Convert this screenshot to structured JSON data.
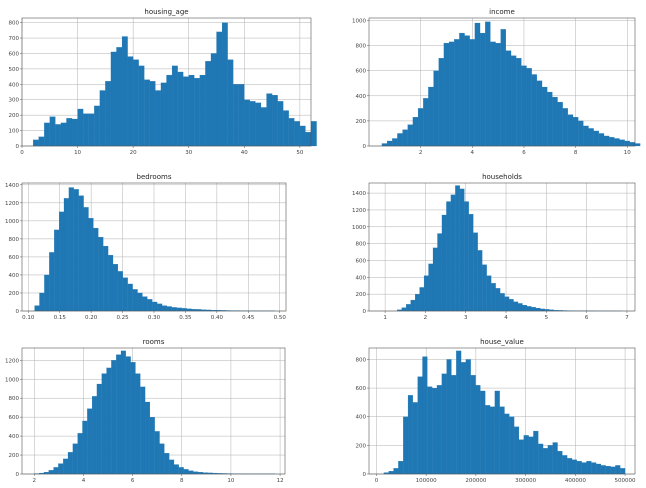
{
  "chart_data": [
    {
      "type": "bar",
      "title": "housing_age",
      "xlim": [
        0,
        52
      ],
      "ylim": [
        0,
        830
      ],
      "xticks": [
        0,
        10,
        20,
        30,
        40,
        50
      ],
      "yticks": [
        0,
        100,
        200,
        300,
        400,
        500,
        600,
        700,
        800
      ],
      "bin_start": 2,
      "bin_width": 1,
      "values": [
        40,
        60,
        150,
        190,
        140,
        150,
        180,
        175,
        240,
        210,
        210,
        260,
        360,
        420,
        610,
        640,
        710,
        580,
        560,
        520,
        430,
        420,
        360,
        410,
        460,
        520,
        480,
        450,
        460,
        440,
        460,
        550,
        600,
        740,
        800,
        560,
        400,
        400,
        300,
        290,
        280,
        250,
        340,
        330,
        290,
        230,
        180,
        160,
        130,
        90,
        160
      ],
      "grid": true,
      "color": "#1f77b4"
    },
    {
      "type": "bar",
      "title": "income",
      "xlim": [
        0,
        10.3
      ],
      "ylim": [
        0,
        1020
      ],
      "xticks": [
        2,
        4,
        6,
        8,
        10
      ],
      "yticks": [
        0,
        200,
        400,
        600,
        800,
        1000
      ],
      "bin_start": 0.5,
      "bin_width": 0.2,
      "values": [
        20,
        40,
        60,
        100,
        130,
        170,
        230,
        300,
        380,
        470,
        600,
        700,
        820,
        830,
        850,
        900,
        880,
        850,
        980,
        900,
        990,
        830,
        820,
        930,
        760,
        720,
        700,
        640,
        620,
        570,
        520,
        470,
        430,
        390,
        350,
        300,
        250,
        230,
        200,
        160,
        140,
        120,
        100,
        80,
        70,
        60,
        50,
        40,
        30,
        20
      ],
      "grid": true,
      "color": "#1f77b4"
    },
    {
      "type": "bar",
      "title": "bedrooms",
      "xlim": [
        0.09,
        0.51
      ],
      "ylim": [
        0,
        1420
      ],
      "xticks": [
        0.1,
        0.15,
        0.2,
        0.25,
        0.3,
        0.35,
        0.4,
        0.45,
        0.5
      ],
      "yticks": [
        0,
        200,
        400,
        600,
        800,
        1000,
        1200,
        1400
      ],
      "bin_start": 0.11,
      "bin_width": 0.0078,
      "values": [
        60,
        200,
        400,
        650,
        900,
        1100,
        1250,
        1370,
        1350,
        1280,
        1150,
        1030,
        920,
        820,
        720,
        620,
        520,
        440,
        370,
        300,
        240,
        200,
        160,
        130,
        100,
        80,
        60,
        50,
        40,
        35,
        30,
        25,
        20,
        18,
        15,
        12,
        10,
        10,
        8,
        6,
        5,
        5,
        4,
        3,
        3,
        2,
        2,
        2,
        2
      ],
      "grid": true,
      "color": "#1f77b4"
    },
    {
      "type": "bar",
      "title": "households",
      "xlim": [
        0.6,
        7.2
      ],
      "ylim": [
        0,
        1520
      ],
      "xticks": [
        1,
        2,
        3,
        4,
        5,
        6,
        7
      ],
      "yticks": [
        0,
        200,
        400,
        600,
        800,
        1000,
        1200,
        1400
      ],
      "bin_start": 1.3,
      "bin_width": 0.111,
      "values": [
        15,
        40,
        80,
        130,
        200,
        280,
        420,
        560,
        750,
        920,
        1140,
        1300,
        1380,
        1490,
        1450,
        1300,
        1150,
        930,
        720,
        550,
        420,
        330,
        270,
        210,
        170,
        140,
        110,
        90,
        70,
        55,
        45,
        35,
        25,
        20,
        15,
        10,
        8,
        6,
        5,
        4,
        3,
        2,
        2,
        2,
        1,
        1,
        1,
        1,
        1,
        1
      ],
      "grid": true,
      "color": "#1f77b4"
    },
    {
      "type": "bar",
      "title": "rooms",
      "xlim": [
        1.5,
        12.2
      ],
      "ylim": [
        0,
        1330
      ],
      "xticks": [
        2,
        4,
        6,
        8,
        10,
        12
      ],
      "yticks": [
        0,
        200,
        400,
        600,
        800,
        1000,
        1200
      ],
      "bin_start": 2,
      "bin_width": 0.196,
      "values": [
        5,
        10,
        20,
        40,
        70,
        110,
        160,
        230,
        320,
        430,
        560,
        690,
        820,
        950,
        1060,
        1120,
        1200,
        1260,
        1300,
        1240,
        1180,
        1060,
        920,
        760,
        600,
        450,
        320,
        220,
        150,
        100,
        70,
        50,
        35,
        25,
        20,
        15,
        12,
        10,
        8,
        6,
        5,
        4,
        4,
        3,
        3,
        2,
        2,
        2,
        2,
        2
      ],
      "grid": true,
      "color": "#1f77b4"
    },
    {
      "type": "bar",
      "title": "house_value",
      "xlim": [
        -15000,
        520000
      ],
      "ylim": [
        0,
        880
      ],
      "xticks": [
        0,
        100000,
        200000,
        300000,
        400000,
        500000
      ],
      "yticks": [
        0,
        200,
        400,
        600,
        800
      ],
      "bin_start": 15000,
      "bin_width": 9700,
      "values": [
        10,
        20,
        40,
        90,
        400,
        550,
        500,
        680,
        820,
        610,
        600,
        620,
        700,
        800,
        690,
        860,
        780,
        800,
        690,
        620,
        580,
        480,
        470,
        580,
        470,
        420,
        400,
        330,
        240,
        270,
        260,
        300,
        210,
        180,
        200,
        220,
        160,
        130,
        110,
        100,
        90,
        80,
        90,
        80,
        70,
        60,
        55,
        50,
        60,
        40
      ],
      "grid": true,
      "color": "#1f77b4"
    }
  ]
}
